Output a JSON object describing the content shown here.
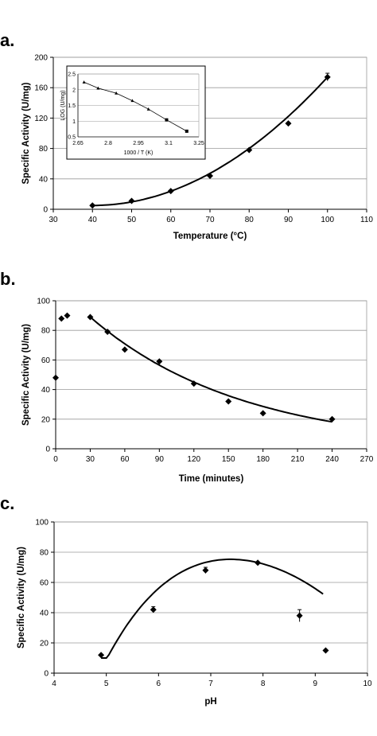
{
  "chart_data": [
    {
      "panel_label": "a.",
      "type": "scatter",
      "xlabel": "Temperature (°C)",
      "ylabel": "Specific Activity (U/mg)",
      "xlim": [
        30,
        110
      ],
      "ylim": [
        0,
        200
      ],
      "xticks": [
        "30",
        "40",
        "50",
        "60",
        "70",
        "80",
        "90",
        "100",
        "110"
      ],
      "yticks": [
        "0",
        "40",
        "80",
        "120",
        "160",
        "200"
      ],
      "grid": "horizontal",
      "series": [
        {
          "points": [
            [
              40,
              5
            ],
            [
              50,
              11
            ],
            [
              60,
              24
            ],
            [
              70,
              44
            ],
            [
              80,
              78
            ],
            [
              90,
              113
            ],
            [
              100,
              174
            ]
          ],
          "errors": [
            0,
            0,
            0,
            0,
            0,
            0,
            5
          ],
          "marker": "diamond",
          "trend": "polynomial"
        }
      ],
      "inset": {
        "type": "line",
        "xlabel": "1000 / T (K)",
        "ylabel": "LOG (U/mg)",
        "xlim": [
          2.65,
          3.25
        ],
        "ylim": [
          0.5,
          2.5
        ],
        "xticks": [
          "2.65",
          "2.8",
          "2.95",
          "3.1",
          "3.25"
        ],
        "yticks": [
          "0.5",
          "1",
          "1.5",
          "2",
          "2.5"
        ],
        "points": [
          [
            2.68,
            2.24
          ],
          [
            2.75,
            2.05
          ],
          [
            2.84,
            1.89
          ],
          [
            2.92,
            1.65
          ],
          [
            3.0,
            1.38
          ],
          [
            3.09,
            1.04
          ],
          [
            3.19,
            0.68
          ]
        ]
      }
    },
    {
      "panel_label": "b.",
      "type": "scatter",
      "xlabel": "Time (minutes)",
      "ylabel": "Specific Activity (U/mg)",
      "xlim": [
        0,
        270
      ],
      "ylim": [
        0,
        100
      ],
      "xticks": [
        "0",
        "30",
        "60",
        "90",
        "120",
        "150",
        "180",
        "210",
        "240",
        "270"
      ],
      "yticks": [
        "0",
        "20",
        "40",
        "60",
        "80",
        "100"
      ],
      "grid": "horizontal",
      "series": [
        {
          "points": [
            [
              0,
              48
            ],
            [
              5,
              88
            ],
            [
              10,
              90
            ],
            [
              30,
              89
            ],
            [
              45,
              79
            ],
            [
              60,
              67
            ],
            [
              90,
              59
            ],
            [
              120,
              44
            ],
            [
              150,
              32
            ],
            [
              180,
              24
            ],
            [
              240,
              20
            ]
          ],
          "marker": "diamond",
          "trend": "exponential decay"
        }
      ]
    },
    {
      "panel_label": "c.",
      "type": "scatter",
      "xlabel": "pH",
      "ylabel": "Specific Activity (U/mg)",
      "xlim": [
        4,
        10
      ],
      "ylim": [
        0,
        100
      ],
      "xticks": [
        "4",
        "5",
        "6",
        "7",
        "8",
        "9",
        "10"
      ],
      "yticks": [
        "0",
        "20",
        "40",
        "60",
        "80",
        "100"
      ],
      "grid": "horizontal",
      "series": [
        {
          "points": [
            [
              4.9,
              12
            ],
            [
              5.9,
              42
            ],
            [
              6.9,
              68
            ],
            [
              7.9,
              73
            ],
            [
              8.7,
              38
            ],
            [
              9.2,
              15
            ]
          ],
          "errors": [
            0,
            2,
            2,
            0,
            4,
            0
          ],
          "marker": "diamond",
          "trend": "polynomial"
        }
      ]
    }
  ]
}
